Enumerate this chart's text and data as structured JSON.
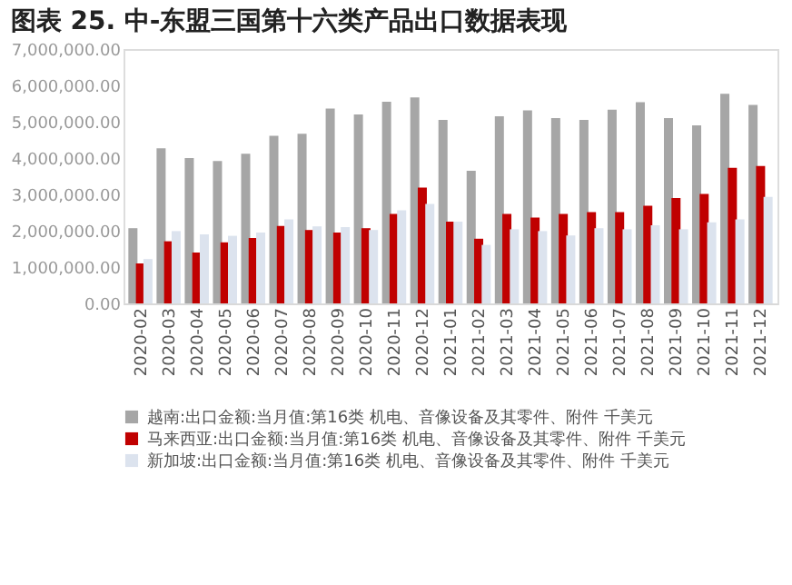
{
  "chart_data": {
    "type": "bar",
    "title": "图表 25. 中-东盟三国第十六类产品出口数据表现",
    "categories": [
      "2020-02",
      "2020-03",
      "2020-04",
      "2020-05",
      "2020-06",
      "2020-07",
      "2020-08",
      "2020-09",
      "2020-10",
      "2020-11",
      "2020-12",
      "2021-01",
      "2021-02",
      "2021-03",
      "2021-04",
      "2021-05",
      "2021-06",
      "2021-07",
      "2021-08",
      "2021-09",
      "2021-10",
      "2021-11",
      "2021-12"
    ],
    "series": [
      {
        "name": "越南:出口金额:当月值:第16类 机电、音像设备及其零件、附件 千美元",
        "color": "#a6a6a6",
        "values": [
          2070000,
          4270000,
          4000000,
          3920000,
          4120000,
          4610000,
          4670000,
          5360000,
          5200000,
          5550000,
          5670000,
          5050000,
          3650000,
          5150000,
          5310000,
          5100000,
          5050000,
          5330000,
          5540000,
          5100000,
          4900000,
          5770000,
          5460000
        ]
      },
      {
        "name": "马来西亚:出口金额:当月值:第16类 机电、音像设备及其零件、附件 千美元",
        "color": "#c00000",
        "values": [
          1100000,
          1710000,
          1400000,
          1680000,
          1800000,
          2130000,
          2020000,
          1950000,
          2070000,
          2460000,
          3190000,
          2250000,
          1780000,
          2460000,
          2360000,
          2460000,
          2510000,
          2510000,
          2690000,
          2900000,
          3010000,
          3730000,
          3780000
        ]
      },
      {
        "name": "新加坡:出口金额:当月值:第16类 机电、音像设备及其零件、附件 千美元",
        "color": "#dce3ee",
        "values": [
          1220000,
          1990000,
          1900000,
          1860000,
          1950000,
          2310000,
          2120000,
          2100000,
          2020000,
          2560000,
          2740000,
          2250000,
          1610000,
          2040000,
          1990000,
          1870000,
          2070000,
          2040000,
          2150000,
          2040000,
          2230000,
          2310000,
          2930000
        ]
      }
    ],
    "ylim": [
      0,
      7000000
    ],
    "yticks": [
      {
        "value": 0,
        "label": "0.00"
      },
      {
        "value": 1000000,
        "label": "1,000,000.00"
      },
      {
        "value": 2000000,
        "label": "2,000,000.00"
      },
      {
        "value": 3000000,
        "label": "3,000,000.00"
      },
      {
        "value": 4000000,
        "label": "4,000,000.00"
      },
      {
        "value": 5000000,
        "label": "5,000,000.00"
      },
      {
        "value": 6000000,
        "label": "6,000,000.00"
      },
      {
        "value": 7000000,
        "label": "7,000,000.00"
      }
    ],
    "grid": false,
    "legend": "bottom"
  }
}
